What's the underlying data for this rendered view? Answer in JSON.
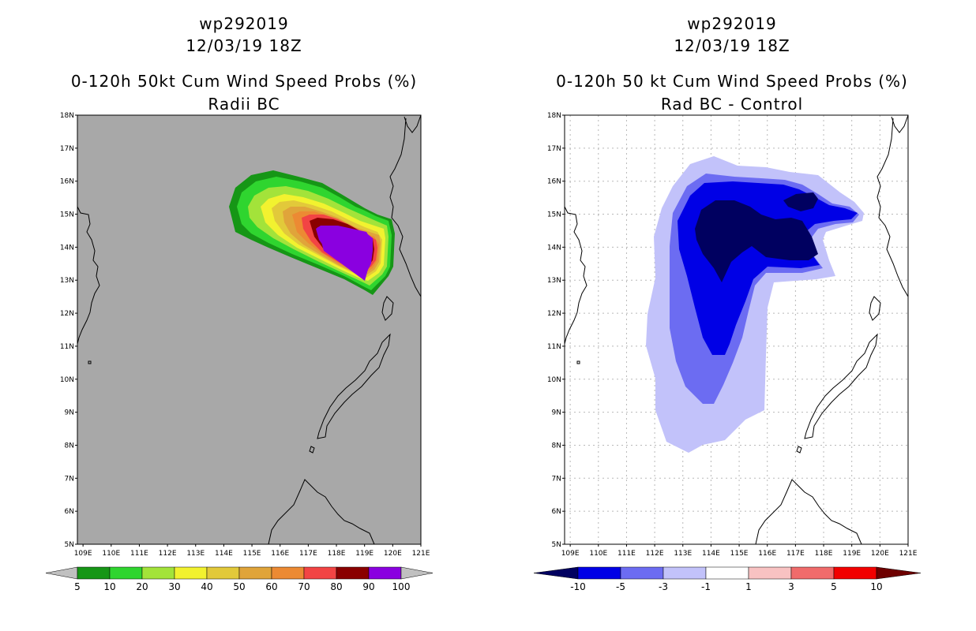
{
  "panels": [
    {
      "id": "radii-bc",
      "storm_id": "wp292019",
      "datetime": "12/03/19 18Z",
      "title": "0-120h 50kt Cum Wind Speed Probs (%)",
      "subtitle": "Radii BC",
      "background_color": "#a8a8a8",
      "colorbar": {
        "labels": [
          "5",
          "10",
          "20",
          "30",
          "40",
          "50",
          "60",
          "70",
          "80",
          "90",
          "100"
        ],
        "colors": [
          "#169616",
          "#2fd52f",
          "#a3e33a",
          "#f2f22f",
          "#e2c93a",
          "#e0a43a",
          "#ec8a33",
          "#f24444",
          "#8a0000",
          "#8a00e0"
        ],
        "end_color": "#c0c0c0"
      }
    },
    {
      "id": "rad-bc-control",
      "storm_id": "wp292019",
      "datetime": "12/03/19 18Z",
      "title": "0-120h 50 kt Cum Wind Speed Probs (%)",
      "subtitle": "Rad BC - Control",
      "background_color": "#ffffff",
      "colorbar": {
        "labels": [
          "-10",
          "-5",
          "-3",
          "-1",
          "1",
          "3",
          "5",
          "10"
        ],
        "colors": [
          "#0000e6",
          "#6c6cf2",
          "#c2c2fa",
          "#ffffff",
          "#f8c2c2",
          "#f06b6b",
          "#f20000"
        ],
        "left_end_color": "#000060",
        "right_end_color": "#6e0000"
      }
    }
  ],
  "axes": {
    "lat_labels": [
      "5N",
      "6N",
      "7N",
      "8N",
      "9N",
      "10N",
      "11N",
      "12N",
      "13N",
      "14N",
      "15N",
      "16N",
      "17N",
      "18N"
    ],
    "lon_labels": [
      "109E",
      "110E",
      "111E",
      "112E",
      "113E",
      "114E",
      "115E",
      "116E",
      "117E",
      "118E",
      "119E",
      "120E",
      "121E"
    ]
  }
}
